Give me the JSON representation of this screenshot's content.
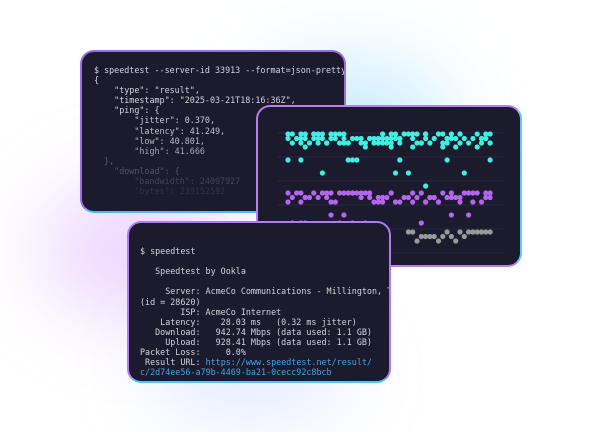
{
  "json_terminal": {
    "lines": [
      "$ speedtest --server-id 33913 --format=json-pretty",
      "{",
      "    \"type\": \"result\",",
      "    \"timestamp\": \"2025-03-21T18:16:36Z\",",
      "    \"ping\": {",
      "        \"jitter\": 0.370,",
      "        \"latency\": 41.249,",
      "        \"low\": 40.801,",
      "        \"high\": 41.666",
      "  },",
      "    \"download\": {",
      "        \"bandwidth\": 24097927",
      "        \"bytes\": 239152592"
    ]
  },
  "scatter_panel": {
    "colors": {
      "top": "#3ff0e0",
      "middle": "#b565f0",
      "bottom": "#9a9a9a",
      "grid": "#2a2a40"
    }
  },
  "cli_terminal": {
    "command": "$ speedtest",
    "heading": "   Speedtest by Ookla",
    "lines": [
      "     Server: AcmeCo Communications - Millington, TN",
      "(id = 28620)",
      "        ISP: AcmeCo Internet",
      "    Latency:    28.03 ms   (0.32 ms jitter)",
      "   Download:   942.74 Mbps (data used: 1.1 GB)",
      "     Upload:   928.41 Mbps (data used: 1.1 GB)",
      "Packet Loss:     0.0%"
    ],
    "result_label": " Result URL: ",
    "result_url_1": "https://www.speedtest.net/result/",
    "result_url_2": "c/2d74ee56-a79b-4469-ba21-0cecc92c8bcb"
  }
}
